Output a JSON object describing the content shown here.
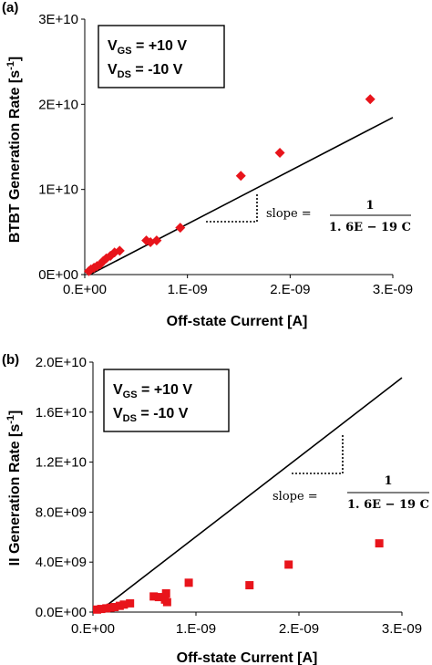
{
  "chart_data": [
    {
      "type": "scatter",
      "panel_label": "(a)",
      "xlabel": "Off-state Current [A]",
      "ylabel": "BTBT Generation Rate [s",
      "ylabel_sup": "-1",
      "ylabel_end": "]",
      "xlim": [
        0,
        3e-09
      ],
      "ylim": [
        0,
        30000000000.0
      ],
      "x_tick_values": [
        0,
        1e-09,
        2e-09,
        3e-09
      ],
      "x_tick_labels": [
        "0.E+00",
        "1.E-09",
        "2.E-09",
        "3.E-09"
      ],
      "y_tick_values": [
        0,
        10000000000.0,
        20000000000.0,
        30000000000.0
      ],
      "y_tick_labels": [
        "0E+00",
        "1E+10",
        "2E+10",
        "3E+10"
      ],
      "marker": "diamond",
      "marker_color": "#e8141b",
      "conditions": {
        "vgs_main": "V",
        "vgs_sub": "GS",
        "vgs_value": " = +10 V",
        "vds_main": "V",
        "vds_sub": "DS",
        "vds_value": " = -10 V"
      },
      "slope": {
        "label": "slope =",
        "numerator": "1",
        "denominator": "1. 6E − 19 C",
        "value": 6.25e+18
      },
      "points": [
        {
          "x": 4e-11,
          "y": 400000000.0
        },
        {
          "x": 6e-11,
          "y": 600000000.0
        },
        {
          "x": 9e-11,
          "y": 800000000.0
        },
        {
          "x": 1.2e-10,
          "y": 1000000000.0
        },
        {
          "x": 1.5e-10,
          "y": 1200000000.0
        },
        {
          "x": 1.8e-10,
          "y": 1600000000.0
        },
        {
          "x": 2.1e-10,
          "y": 1900000000.0
        },
        {
          "x": 2.5e-10,
          "y": 2200000000.0
        },
        {
          "x": 2.9e-10,
          "y": 2600000000.0
        },
        {
          "x": 3.4e-10,
          "y": 2800000000.0
        },
        {
          "x": 6e-10,
          "y": 4000000000.0
        },
        {
          "x": 6.4e-10,
          "y": 3800000000.0
        },
        {
          "x": 7e-10,
          "y": 4000000000.0
        },
        {
          "x": 9.3e-10,
          "y": 5500000000.0
        },
        {
          "x": 1.52e-09,
          "y": 11600000000.0
        },
        {
          "x": 1.9e-09,
          "y": 14300000000.0
        },
        {
          "x": 2.78e-09,
          "y": 20600000000.0
        }
      ]
    },
    {
      "type": "scatter",
      "panel_label": "(b)",
      "xlabel": "Off-state Current [A]",
      "ylabel": "II Generation Rate [s",
      "ylabel_sup": "-1",
      "ylabel_end": "]",
      "xlim": [
        0,
        3e-09
      ],
      "ylim": [
        0,
        20000000000.0
      ],
      "x_tick_values": [
        0,
        1e-09,
        2e-09,
        3e-09
      ],
      "x_tick_labels": [
        "0.E+00",
        "1.E-09",
        "2.E-09",
        "3.E-09"
      ],
      "y_tick_values": [
        0,
        4000000000.0,
        8000000000.0,
        12000000000.0,
        16000000000.0,
        20000000000.0
      ],
      "y_tick_labels": [
        "0.0E+00",
        "4.0E+09",
        "8.0E+09",
        "1.2E+10",
        "1.6E+10",
        "2.0E+10"
      ],
      "marker": "square",
      "marker_color": "#e8141b",
      "conditions": {
        "vgs_main": "V",
        "vgs_sub": "GS",
        "vgs_value": " = +10 V",
        "vds_main": "V",
        "vds_sub": "DS",
        "vds_value": " = -10 V"
      },
      "slope": {
        "label": "slope =",
        "numerator": "1",
        "denominator": "1. 6E − 19 C",
        "value": 6.25e+18
      },
      "points": [
        {
          "x": 4e-11,
          "y": 200000000.0
        },
        {
          "x": 8e-11,
          "y": 250000000.0
        },
        {
          "x": 1.3e-10,
          "y": 300000000.0
        },
        {
          "x": 1.7e-10,
          "y": 350000000.0
        },
        {
          "x": 2.1e-10,
          "y": 400000000.0
        },
        {
          "x": 2.6e-10,
          "y": 500000000.0
        },
        {
          "x": 3e-10,
          "y": 600000000.0
        },
        {
          "x": 3.6e-10,
          "y": 700000000.0
        },
        {
          "x": 5.9e-10,
          "y": 1250000000.0
        },
        {
          "x": 6.4e-10,
          "y": 1200000000.0
        },
        {
          "x": 7e-10,
          "y": 1000000000.0
        },
        {
          "x": 7.1e-10,
          "y": 1500000000.0
        },
        {
          "x": 7.2e-10,
          "y": 800000000.0
        },
        {
          "x": 9.3e-10,
          "y": 2350000000.0
        },
        {
          "x": 1.52e-09,
          "y": 2150000000.0
        },
        {
          "x": 1.9e-09,
          "y": 3800000000.0
        },
        {
          "x": 2.78e-09,
          "y": 5500000000.0
        }
      ]
    }
  ]
}
